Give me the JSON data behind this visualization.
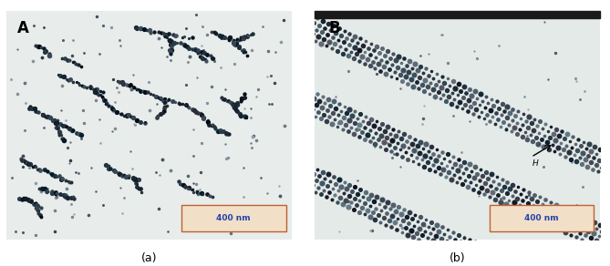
{
  "figsize": [
    6.69,
    2.92
  ],
  "dpi": 100,
  "bg_color_left": "#e8ecea",
  "bg_color_right": "#e4eae8",
  "label_A": "A",
  "label_B": "B",
  "caption_a": "(a)",
  "caption_b": "(b)",
  "scalebar_text": "400 nm",
  "scalebar_box_facecolor": "#f2dfc8",
  "scalebar_text_color": "#2244aa",
  "scalebar_border_color": "#c06030",
  "scalebar_linewidth": 1.0,
  "top_bar_color": "#1a1a1a",
  "label_fontsize": 12,
  "caption_fontsize": 9,
  "scalebar_fontsize": 6.5,
  "dot_color_dark": [
    0.05,
    0.12,
    0.15
  ],
  "dot_color_mid": [
    0.25,
    0.35,
    0.38
  ],
  "dot_color_light": [
    0.45,
    0.55,
    0.58
  ]
}
